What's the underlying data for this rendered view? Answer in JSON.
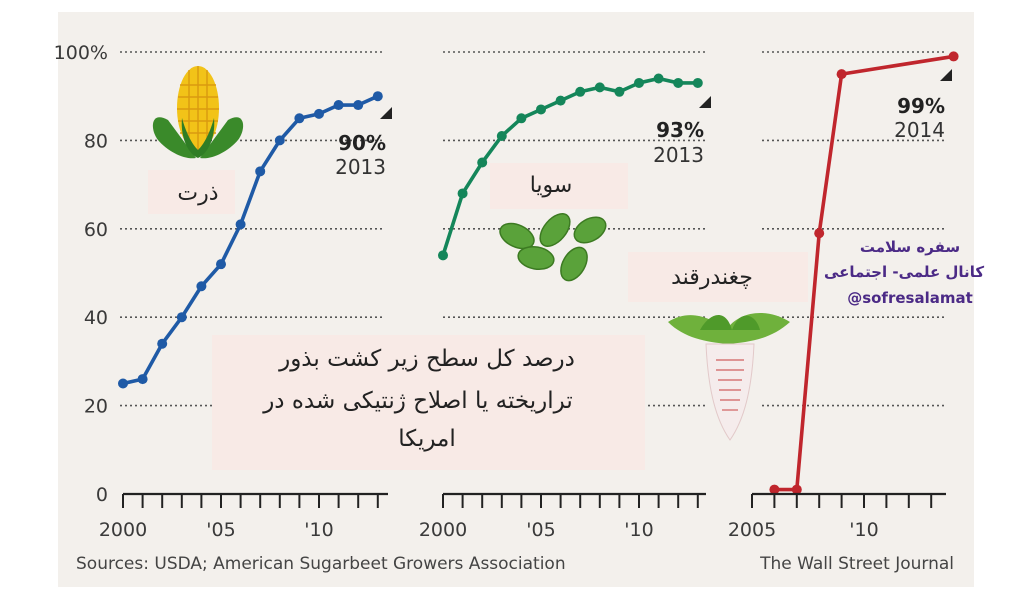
{
  "chart_data": [
    {
      "type": "line",
      "name_fa": "ذرت",
      "color": "#1f5aa6",
      "x": [
        2000,
        2001,
        2002,
        2003,
        2004,
        2005,
        2006,
        2007,
        2008,
        2009,
        2010,
        2011,
        2012,
        2013
      ],
      "values": [
        25,
        26,
        34,
        40,
        47,
        52,
        61,
        73,
        80,
        85,
        86,
        88,
        88,
        90
      ],
      "end_value_label": "90%",
      "end_year_label": "2013",
      "xticks": [
        "2000",
        "'05",
        "'10"
      ]
    },
    {
      "type": "line",
      "name_fa": "سویا",
      "color": "#14865a",
      "x": [
        2000,
        2001,
        2002,
        2003,
        2004,
        2005,
        2006,
        2007,
        2008,
        2009,
        2010,
        2011,
        2012,
        2013
      ],
      "values": [
        54,
        68,
        75,
        81,
        85,
        87,
        89,
        91,
        92,
        91,
        93,
        94,
        93,
        93
      ],
      "end_value_label": "93%",
      "end_year_label": "2013",
      "xticks": [
        "2000",
        "'05",
        "'10"
      ]
    },
    {
      "type": "line",
      "name_fa": "چغندرقند",
      "color": "#c0262d",
      "x": [
        2006,
        2007,
        2008,
        2009,
        2014
      ],
      "values": [
        1,
        1,
        59,
        95,
        99
      ],
      "end_value_label": "99%",
      "end_year_label": "2014",
      "xticks": [
        "2005",
        "'10"
      ]
    }
  ],
  "y_ticks": [
    "0",
    "20",
    "40",
    "60",
    "80",
    "100%"
  ],
  "caption_fa": [
    "درصد کل سطح زیر کشت بذور",
    "تراریخته یا اصلاح ژنتیکی شده در",
    "امریکا"
  ],
  "watermark": [
    "سفره سلامت",
    "کانال علمی- اجتماعی",
    "@sofresalamat"
  ],
  "sources": "Sources: USDA; American Sugarbeet Growers Association",
  "publisher": "The Wall Street Journal",
  "icons": [
    "corn-icon",
    "soybeans-icon",
    "sugarbeet-icon"
  ]
}
